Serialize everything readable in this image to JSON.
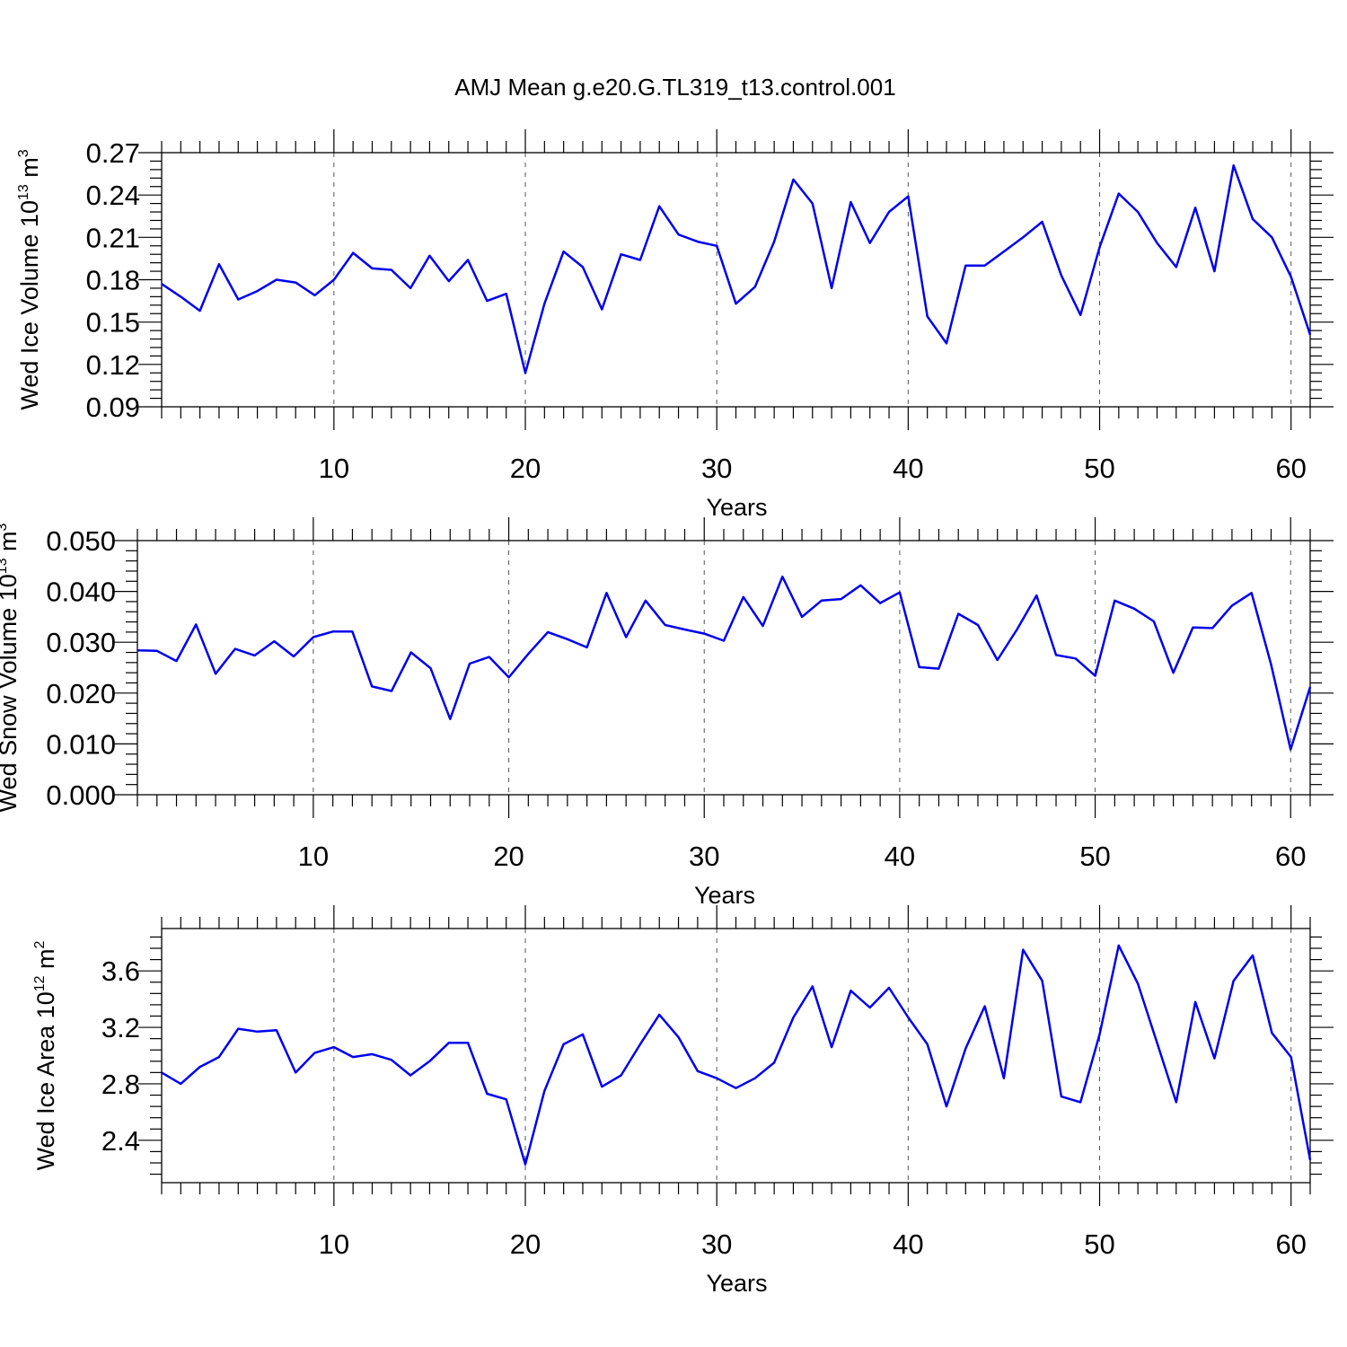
{
  "title": "AMJ Mean g.e20.G.TL319_t13.control.001",
  "chart_data": [
    {
      "type": "line",
      "xlabel": "Years",
      "ylabel": "Wed Ice Volume 10",
      "ylabel_exp": "13",
      "ylabel_unit": "m",
      "ylabel_unit_exp": "3",
      "xlim": [
        1,
        61
      ],
      "ylim": [
        0.09,
        0.27
      ],
      "xticks": [
        10,
        20,
        30,
        40,
        50,
        60
      ],
      "yticks": [
        "0.09",
        "0.12",
        "0.15",
        "0.18",
        "0.21",
        "0.24",
        "0.27"
      ],
      "grid": "dashed vertical lines at x major ticks",
      "color": "#0000ee",
      "x": [
        1,
        2,
        3,
        4,
        5,
        6,
        7,
        8,
        9,
        10,
        11,
        12,
        13,
        14,
        15,
        16,
        17,
        18,
        19,
        20,
        21,
        22,
        23,
        24,
        25,
        26,
        27,
        28,
        29,
        30,
        31,
        32,
        33,
        34,
        35,
        36,
        37,
        38,
        39,
        40,
        41,
        42,
        43,
        44,
        45,
        46,
        47,
        48,
        49,
        50,
        51,
        52,
        53,
        54,
        55,
        56,
        57,
        58,
        59,
        60,
        61
      ],
      "values": [
        0.177,
        0.168,
        0.158,
        0.191,
        0.166,
        0.172,
        0.18,
        0.178,
        0.169,
        0.18,
        0.199,
        0.188,
        0.187,
        0.174,
        0.197,
        0.179,
        0.194,
        0.165,
        0.17,
        0.114,
        0.163,
        0.2,
        0.189,
        0.159,
        0.198,
        0.194,
        0.232,
        0.212,
        0.207,
        0.204,
        0.163,
        0.175,
        0.207,
        0.251,
        0.234,
        0.174,
        0.235,
        0.206,
        0.228,
        0.239,
        0.154,
        0.135,
        0.19,
        0.19,
        0.2,
        0.21,
        0.221,
        0.183,
        0.155,
        0.203,
        0.241,
        0.228,
        0.206,
        0.189,
        0.231,
        0.186,
        0.261,
        0.223,
        0.21,
        0.182,
        0.141
      ]
    },
    {
      "type": "line",
      "xlabel": "Years",
      "ylabel": "Wed Snow Volume 10",
      "ylabel_exp": "13",
      "ylabel_unit": "m",
      "ylabel_unit_exp": "3",
      "xlim": [
        1,
        61
      ],
      "ylim": [
        0.0,
        0.05
      ],
      "xticks": [
        10,
        20,
        30,
        40,
        50,
        60
      ],
      "yticks": [
        "0.000",
        "0.010",
        "0.020",
        "0.030",
        "0.040",
        "0.050"
      ],
      "grid": "dashed vertical lines at x major ticks",
      "color": "#0000ee",
      "x": [
        1,
        2,
        3,
        4,
        5,
        6,
        7,
        8,
        9,
        10,
        11,
        12,
        13,
        14,
        15,
        16,
        17,
        18,
        19,
        20,
        21,
        22,
        23,
        24,
        25,
        26,
        27,
        28,
        29,
        30,
        31,
        32,
        33,
        34,
        35,
        36,
        37,
        38,
        39,
        40,
        41,
        42,
        43,
        44,
        45,
        46,
        47,
        48,
        49,
        50,
        51,
        52,
        53,
        54,
        55,
        56,
        57,
        58,
        59,
        60,
        61
      ],
      "values": [
        0.0284,
        0.0283,
        0.0263,
        0.0335,
        0.0238,
        0.0287,
        0.0274,
        0.0302,
        0.0272,
        0.031,
        0.0321,
        0.0321,
        0.0213,
        0.0204,
        0.028,
        0.0249,
        0.0149,
        0.0258,
        0.0271,
        0.0231,
        0.0277,
        0.032,
        0.0306,
        0.029,
        0.0397,
        0.031,
        0.0382,
        0.0334,
        0.0325,
        0.0317,
        0.0303,
        0.0389,
        0.0332,
        0.0429,
        0.035,
        0.0382,
        0.0385,
        0.0412,
        0.0377,
        0.0398,
        0.0251,
        0.0248,
        0.0356,
        0.0334,
        0.0265,
        0.0325,
        0.0392,
        0.0275,
        0.0268,
        0.0234,
        0.0382,
        0.0366,
        0.0341,
        0.024,
        0.0329,
        0.0328,
        0.0372,
        0.0397,
        0.0256,
        0.0089,
        0.0212
      ]
    },
    {
      "type": "line",
      "xlabel": "Years",
      "ylabel": "Wed Ice Area 10",
      "ylabel_exp": "12",
      "ylabel_unit": "m",
      "ylabel_unit_exp": "2",
      "xlim": [
        1,
        61
      ],
      "ylim": [
        2.1,
        3.9
      ],
      "xticks": [
        10,
        20,
        30,
        40,
        50,
        60
      ],
      "yticks": [
        "2.4",
        "2.8",
        "3.2",
        "3.6"
      ],
      "grid": "dashed vertical lines at x major ticks",
      "color": "#0000ee",
      "x": [
        1,
        2,
        3,
        4,
        5,
        6,
        7,
        8,
        9,
        10,
        11,
        12,
        13,
        14,
        15,
        16,
        17,
        18,
        19,
        20,
        21,
        22,
        23,
        24,
        25,
        26,
        27,
        28,
        29,
        30,
        31,
        32,
        33,
        34,
        35,
        36,
        37,
        38,
        39,
        40,
        41,
        42,
        43,
        44,
        45,
        46,
        47,
        48,
        49,
        50,
        51,
        52,
        53,
        54,
        55,
        56,
        57,
        58,
        59,
        60,
        61
      ],
      "values": [
        2.88,
        2.8,
        2.92,
        2.99,
        3.19,
        3.17,
        3.18,
        2.88,
        3.02,
        3.06,
        2.99,
        3.01,
        2.97,
        2.86,
        2.96,
        3.09,
        3.09,
        2.73,
        2.69,
        2.23,
        2.75,
        3.08,
        3.15,
        2.78,
        2.86,
        3.08,
        3.29,
        3.13,
        2.89,
        2.84,
        2.77,
        2.84,
        2.95,
        3.27,
        3.49,
        3.06,
        3.46,
        3.34,
        3.48,
        3.27,
        3.08,
        2.64,
        3.05,
        3.35,
        2.84,
        3.75,
        3.53,
        2.71,
        2.67,
        3.15,
        3.78,
        3.51,
        3.09,
        2.67,
        3.38,
        2.98,
        3.53,
        3.71,
        3.16,
        2.99,
        2.26
      ]
    }
  ]
}
